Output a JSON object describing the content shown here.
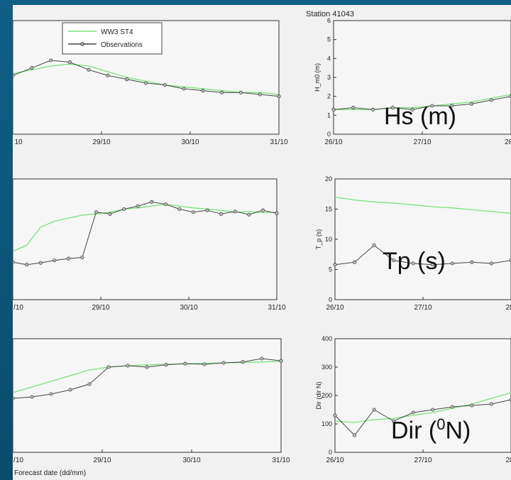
{
  "figure": {
    "title": "Station 41043",
    "legend": [
      {
        "label": "WW3 ST4",
        "color": "#7de07d"
      },
      {
        "label": "Observations",
        "color": "#444444"
      }
    ],
    "xlabel_bottom_left": "Forecast date (dd/mm)"
  },
  "callouts": {
    "hs": "Hs (m)",
    "tp": "Tp (s)",
    "dir_prefix": "Dir (",
    "dir_sup": "0",
    "dir_suffix": "N)"
  },
  "colors": {
    "model": "#7de07d",
    "observations": "#444444",
    "axis": "#333333",
    "background": "#0f5f86"
  },
  "chart_data": [
    {
      "id": "hs-left",
      "type": "line",
      "ylabel": "",
      "x_ticks": [
        "10",
        "29/10",
        "30/10",
        "31/10"
      ],
      "y_ticks": [],
      "ylim": [
        0,
        6
      ],
      "series": [
        {
          "name": "WW3 ST4",
          "values": [
            3.2,
            3.4,
            3.6,
            3.7,
            3.6,
            3.3,
            3.0,
            2.8,
            2.6,
            2.5,
            2.4,
            2.3,
            2.2,
            2.2,
            2.1
          ]
        },
        {
          "name": "Observations",
          "values": [
            3.1,
            3.5,
            3.9,
            3.8,
            3.4,
            3.1,
            2.9,
            2.7,
            2.6,
            2.4,
            2.3,
            2.2,
            2.2,
            2.1,
            2.0
          ]
        }
      ]
    },
    {
      "id": "hs-right",
      "type": "line",
      "ylabel": "H_m0 (m)",
      "x_ticks": [
        "26/10",
        "27/10",
        "28/"
      ],
      "y_ticks": [
        "0",
        "1",
        "2",
        "3",
        "4",
        "5",
        "6"
      ],
      "ylim": [
        0,
        6
      ],
      "series": [
        {
          "name": "WW3 ST4",
          "values": [
            1.3,
            1.3,
            1.3,
            1.4,
            1.4,
            1.5,
            1.6,
            1.7,
            1.9,
            2.1
          ]
        },
        {
          "name": "Observations",
          "values": [
            1.3,
            1.4,
            1.3,
            1.4,
            1.3,
            1.5,
            1.5,
            1.6,
            1.8,
            2.0
          ]
        }
      ]
    },
    {
      "id": "tp-left",
      "type": "line",
      "ylabel": "",
      "x_ticks": [
        "/10",
        "29/10",
        "30/10",
        "31/10"
      ],
      "y_ticks": [],
      "ylim": [
        0,
        20
      ],
      "series": [
        {
          "name": "WW3 ST4",
          "values": [
            8,
            9,
            12,
            13,
            13.5,
            14,
            14.2,
            14.5,
            15,
            15.2,
            15.5,
            15.8,
            15.5,
            15.2,
            15,
            14.8,
            14.5,
            14.6,
            14.4,
            14.5
          ]
        },
        {
          "name": "Observations",
          "values": [
            6.2,
            5.8,
            6.1,
            6.5,
            6.8,
            7,
            14.5,
            14.2,
            15,
            15.5,
            16.2,
            15.8,
            15,
            14.5,
            14.8,
            14.2,
            14.6,
            14.1,
            14.8,
            14.3
          ]
        }
      ]
    },
    {
      "id": "tp-right",
      "type": "line",
      "ylabel": "T_p (s)",
      "x_ticks": [
        "26/10",
        "27/10",
        "28"
      ],
      "y_ticks": [
        "0",
        "5",
        "10",
        "15",
        "20"
      ],
      "ylim": [
        0,
        20
      ],
      "series": [
        {
          "name": "WW3 ST4",
          "values": [
            17,
            16.5,
            16.2,
            16,
            15.7,
            15.4,
            15.2,
            14.9,
            14.6,
            14.3
          ]
        },
        {
          "name": "Observations",
          "values": [
            5.8,
            6.2,
            9,
            6.5,
            6,
            5.8,
            6,
            6.2,
            6,
            6.5
          ]
        }
      ]
    },
    {
      "id": "dir-left",
      "type": "line",
      "ylabel": "",
      "x_ticks": [
        "/10",
        "29/10",
        "30/10",
        "31/10"
      ],
      "y_ticks": [],
      "ylim": [
        0,
        400
      ],
      "series": [
        {
          "name": "WW3 ST4",
          "values": [
            210,
            230,
            250,
            270,
            290,
            300,
            305,
            308,
            310,
            312,
            313,
            315,
            316,
            318,
            320
          ]
        },
        {
          "name": "Observations",
          "values": [
            190,
            195,
            205,
            220,
            240,
            300,
            305,
            300,
            308,
            312,
            310,
            315,
            318,
            330,
            322
          ]
        }
      ]
    },
    {
      "id": "dir-right",
      "type": "line",
      "ylabel": "Dir (dir N)",
      "x_ticks": [
        "26/10",
        "27/10",
        "28"
      ],
      "y_ticks": [
        "0",
        "100",
        "200",
        "300",
        "400"
      ],
      "ylim": [
        0,
        400
      ],
      "series": [
        {
          "name": "WW3 ST4",
          "values": [
            110,
            105,
            115,
            120,
            130,
            140,
            155,
            170,
            190,
            210
          ]
        },
        {
          "name": "Observations",
          "values": [
            130,
            60,
            150,
            110,
            140,
            150,
            160,
            165,
            170,
            185
          ]
        }
      ]
    }
  ]
}
